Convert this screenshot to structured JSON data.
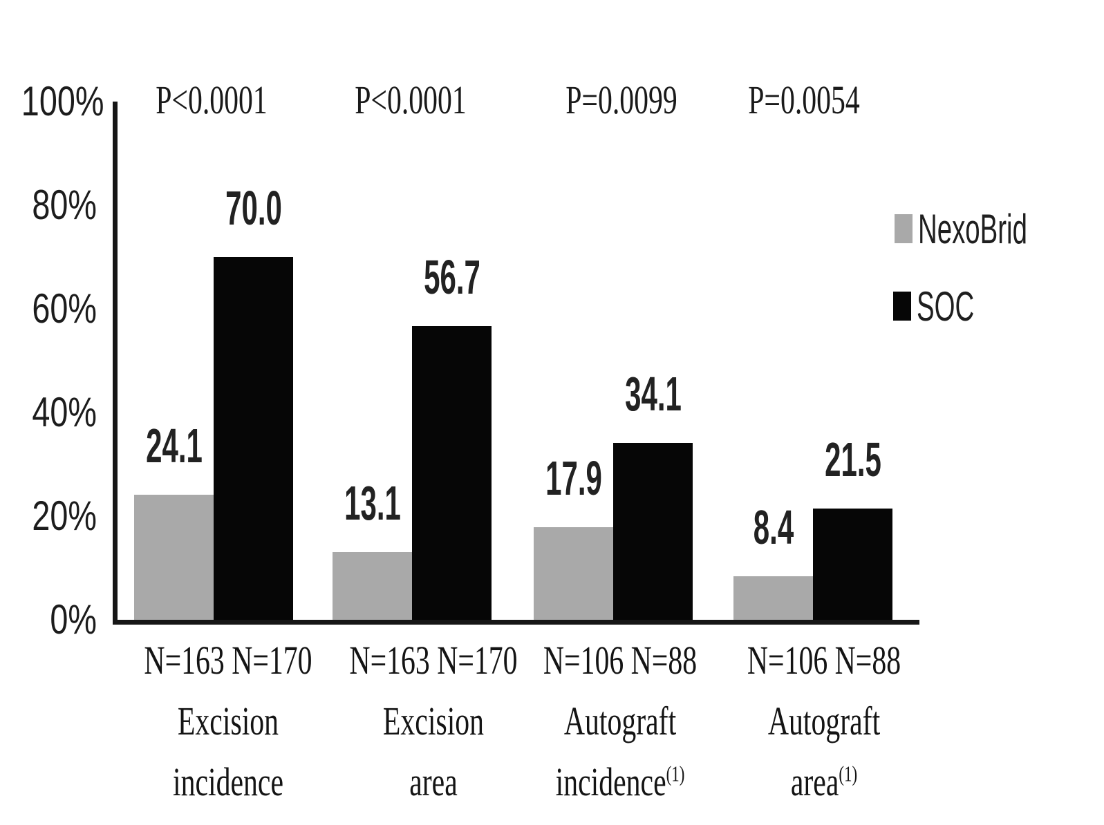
{
  "chart_data": {
    "type": "bar",
    "title": "",
    "y_axis": {
      "unit": "%",
      "min": 0,
      "max": 100,
      "grid": false,
      "ticks": [
        {
          "label": "100%",
          "value": 100
        },
        {
          "label": "80%",
          "value": 80
        },
        {
          "label": "60%",
          "value": 60
        },
        {
          "label": "40%",
          "value": 40
        },
        {
          "label": "20%",
          "value": 20
        },
        {
          "label": "0%",
          "value": 0
        }
      ]
    },
    "series": [
      {
        "name": "NexoBrid",
        "color": "#a9a9a9",
        "values": [
          24.1,
          13.1,
          17.9,
          8.4
        ]
      },
      {
        "name": "SOC",
        "color": "#060606",
        "values": [
          70.0,
          56.7,
          34.1,
          21.5
        ]
      }
    ],
    "groups": [
      {
        "p_value": "P<0.0001",
        "n_labels": [
          "N=163",
          "N=170"
        ],
        "category_lines": [
          "Excision",
          "incidence"
        ],
        "superscript": "",
        "values": [
          24.1,
          70.0
        ],
        "value_labels": [
          "24.1",
          "70.0"
        ]
      },
      {
        "p_value": "P<0.0001",
        "n_labels": [
          "N=163",
          "N=170"
        ],
        "category_lines": [
          "Excision",
          "area"
        ],
        "superscript": "",
        "values": [
          13.1,
          56.7
        ],
        "value_labels": [
          "13.1",
          "56.7"
        ]
      },
      {
        "p_value": "P=0.0099",
        "n_labels": [
          "N=106",
          "N=88"
        ],
        "category_lines": [
          "Autograft",
          "incidence"
        ],
        "superscript": "(1)",
        "values": [
          17.9,
          34.1
        ],
        "value_labels": [
          "17.9",
          "34.1"
        ]
      },
      {
        "p_value": "P=0.0054",
        "n_labels": [
          "N=106",
          "N=88"
        ],
        "category_lines": [
          "Autograft",
          "area"
        ],
        "superscript": "(1)",
        "values": [
          8.4,
          21.5
        ],
        "value_labels": [
          "8.4",
          "21.5"
        ]
      }
    ],
    "legend": {
      "position": "right",
      "entries": [
        {
          "label": "NexoBrid",
          "color": "#a9a9a9"
        },
        {
          "label": "SOC",
          "color": "#060606"
        }
      ]
    },
    "axis_color": "#161616",
    "text_color": "#1c1c1c"
  }
}
